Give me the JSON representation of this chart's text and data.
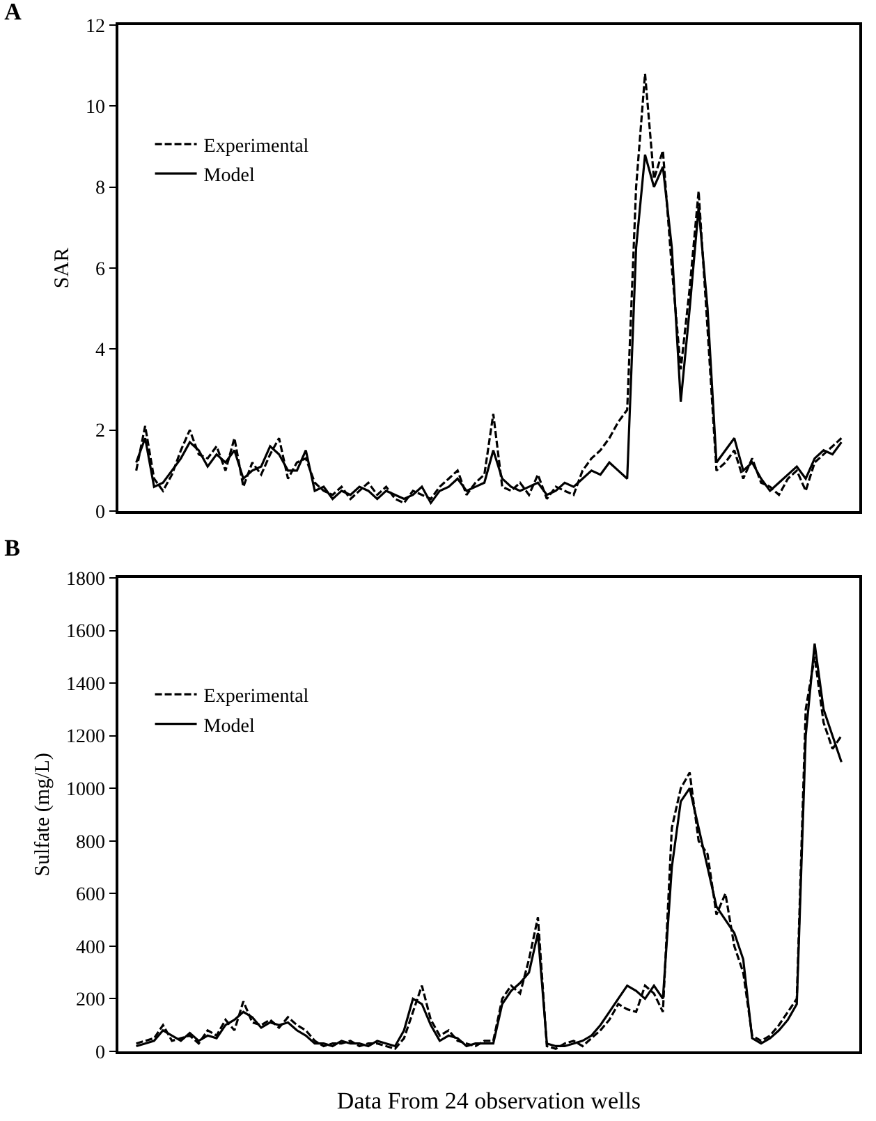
{
  "chart_data": [
    {
      "type": "line",
      "title": "A",
      "ylabel": "SAR",
      "categories": [
        null,
        null,
        null,
        null,
        null,
        null,
        null,
        null,
        null,
        null,
        null,
        null,
        null,
        null,
        null,
        null,
        null,
        null,
        null,
        null,
        null,
        null,
        null,
        null,
        null,
        null,
        null,
        null,
        null,
        null,
        null,
        null,
        null,
        null,
        null,
        null,
        null,
        null,
        null,
        null,
        null,
        null,
        null,
        null,
        null,
        null,
        null,
        null,
        null,
        null,
        null,
        null,
        null,
        null,
        null,
        null,
        null,
        null,
        null,
        null,
        null,
        null,
        null,
        null,
        null,
        null,
        null,
        null,
        null,
        null,
        null,
        null,
        null,
        null,
        null,
        null,
        null,
        null,
        null,
        null
      ],
      "ylim": [
        0,
        12
      ],
      "yticks": [
        0,
        2,
        4,
        6,
        8,
        10,
        12
      ],
      "grid": false,
      "legend": "top left",
      "tick_labels": "y",
      "marker": "none",
      "series": [
        {
          "name": "Experimental",
          "color": "#000000",
          "line_style": "dashed",
          "values": [
            1.0,
            2.1,
            0.8,
            0.5,
            0.9,
            1.5,
            2.0,
            1.4,
            1.3,
            1.6,
            1.0,
            1.8,
            0.6,
            1.2,
            0.9,
            1.4,
            1.8,
            0.8,
            1.2,
            1.3,
            0.7,
            0.5,
            0.4,
            0.6,
            0.3,
            0.5,
            0.7,
            0.4,
            0.6,
            0.3,
            0.2,
            0.5,
            0.4,
            0.3,
            0.6,
            0.8,
            1.0,
            0.4,
            0.7,
            0.9,
            2.4,
            0.6,
            0.5,
            0.7,
            0.4,
            0.9,
            0.3,
            0.6,
            0.5,
            0.4,
            1.0,
            1.3,
            1.5,
            1.8,
            2.2,
            2.5,
            8.0,
            10.8,
            8.2,
            8.9,
            6.0,
            3.5,
            5.5,
            7.9,
            4.5,
            1.0,
            1.2,
            1.5,
            0.8,
            1.3,
            0.7,
            0.6,
            0.4,
            0.8,
            1.0,
            0.5,
            1.2,
            1.4,
            1.6,
            1.8
          ]
        },
        {
          "name": "Model",
          "color": "#000000",
          "line_style": "solid",
          "values": [
            1.2,
            1.8,
            0.6,
            0.7,
            1.0,
            1.3,
            1.7,
            1.5,
            1.1,
            1.4,
            1.2,
            1.5,
            0.8,
            1.0,
            1.1,
            1.6,
            1.4,
            1.0,
            1.0,
            1.5,
            0.5,
            0.6,
            0.3,
            0.5,
            0.4,
            0.6,
            0.5,
            0.3,
            0.5,
            0.4,
            0.3,
            0.4,
            0.6,
            0.2,
            0.5,
            0.6,
            0.8,
            0.5,
            0.6,
            0.7,
            1.5,
            0.8,
            0.6,
            0.5,
            0.6,
            0.7,
            0.4,
            0.5,
            0.7,
            0.6,
            0.8,
            1.0,
            0.9,
            1.2,
            1.0,
            0.8,
            6.5,
            8.8,
            8.0,
            8.5,
            6.5,
            2.7,
            5.0,
            7.5,
            5.0,
            1.2,
            1.5,
            1.8,
            1.0,
            1.2,
            0.8,
            0.5,
            0.7,
            0.9,
            1.1,
            0.8,
            1.3,
            1.5,
            1.4,
            1.7
          ]
        }
      ]
    },
    {
      "type": "line",
      "title": "B",
      "ylabel": "Sulfate (mg/L)",
      "xlabel": "Data From 24 observation wells",
      "categories": [
        null,
        null,
        null,
        null,
        null,
        null,
        null,
        null,
        null,
        null,
        null,
        null,
        null,
        null,
        null,
        null,
        null,
        null,
        null,
        null,
        null,
        null,
        null,
        null,
        null,
        null,
        null,
        null,
        null,
        null,
        null,
        null,
        null,
        null,
        null,
        null,
        null,
        null,
        null,
        null,
        null,
        null,
        null,
        null,
        null,
        null,
        null,
        null,
        null,
        null,
        null,
        null,
        null,
        null,
        null,
        null,
        null,
        null,
        null,
        null,
        null,
        null,
        null,
        null,
        null,
        null,
        null,
        null,
        null,
        null,
        null,
        null,
        null,
        null,
        null,
        null,
        null,
        null,
        null,
        null
      ],
      "ylim": [
        0,
        1800
      ],
      "yticks": [
        0,
        200,
        400,
        600,
        800,
        1000,
        1200,
        1400,
        1600,
        1800
      ],
      "grid": false,
      "legend": "top left",
      "tick_labels": "y",
      "marker": "none",
      "series": [
        {
          "name": "Experimental",
          "color": "#000000",
          "line_style": "dashed",
          "values": [
            30,
            40,
            50,
            100,
            40,
            50,
            60,
            30,
            80,
            60,
            120,
            80,
            190,
            110,
            100,
            120,
            90,
            130,
            100,
            80,
            40,
            20,
            30,
            30,
            40,
            20,
            30,
            30,
            20,
            10,
            50,
            150,
            250,
            120,
            60,
            80,
            40,
            30,
            20,
            40,
            40,
            200,
            250,
            220,
            350,
            510,
            20,
            10,
            30,
            40,
            20,
            50,
            80,
            120,
            180,
            160,
            150,
            250,
            220,
            150,
            850,
            1000,
            1060,
            800,
            750,
            520,
            600,
            400,
            300,
            60,
            40,
            60,
            100,
            150,
            200,
            1300,
            1500,
            1250,
            1150,
            1200
          ]
        },
        {
          "name": "Model",
          "color": "#000000",
          "line_style": "solid",
          "values": [
            20,
            30,
            40,
            80,
            60,
            40,
            70,
            40,
            60,
            50,
            100,
            120,
            150,
            130,
            90,
            110,
            100,
            110,
            80,
            60,
            30,
            30,
            20,
            40,
            30,
            30,
            20,
            40,
            30,
            20,
            80,
            200,
            180,
            100,
            40,
            60,
            50,
            20,
            30,
            30,
            30,
            180,
            230,
            260,
            300,
            450,
            30,
            20,
            20,
            30,
            40,
            60,
            100,
            150,
            200,
            250,
            230,
            200,
            250,
            200,
            700,
            950,
            1000,
            850,
            700,
            550,
            500,
            450,
            350,
            50,
            30,
            50,
            80,
            120,
            180,
            1200,
            1550,
            1300,
            1200,
            1100
          ]
        }
      ]
    }
  ]
}
